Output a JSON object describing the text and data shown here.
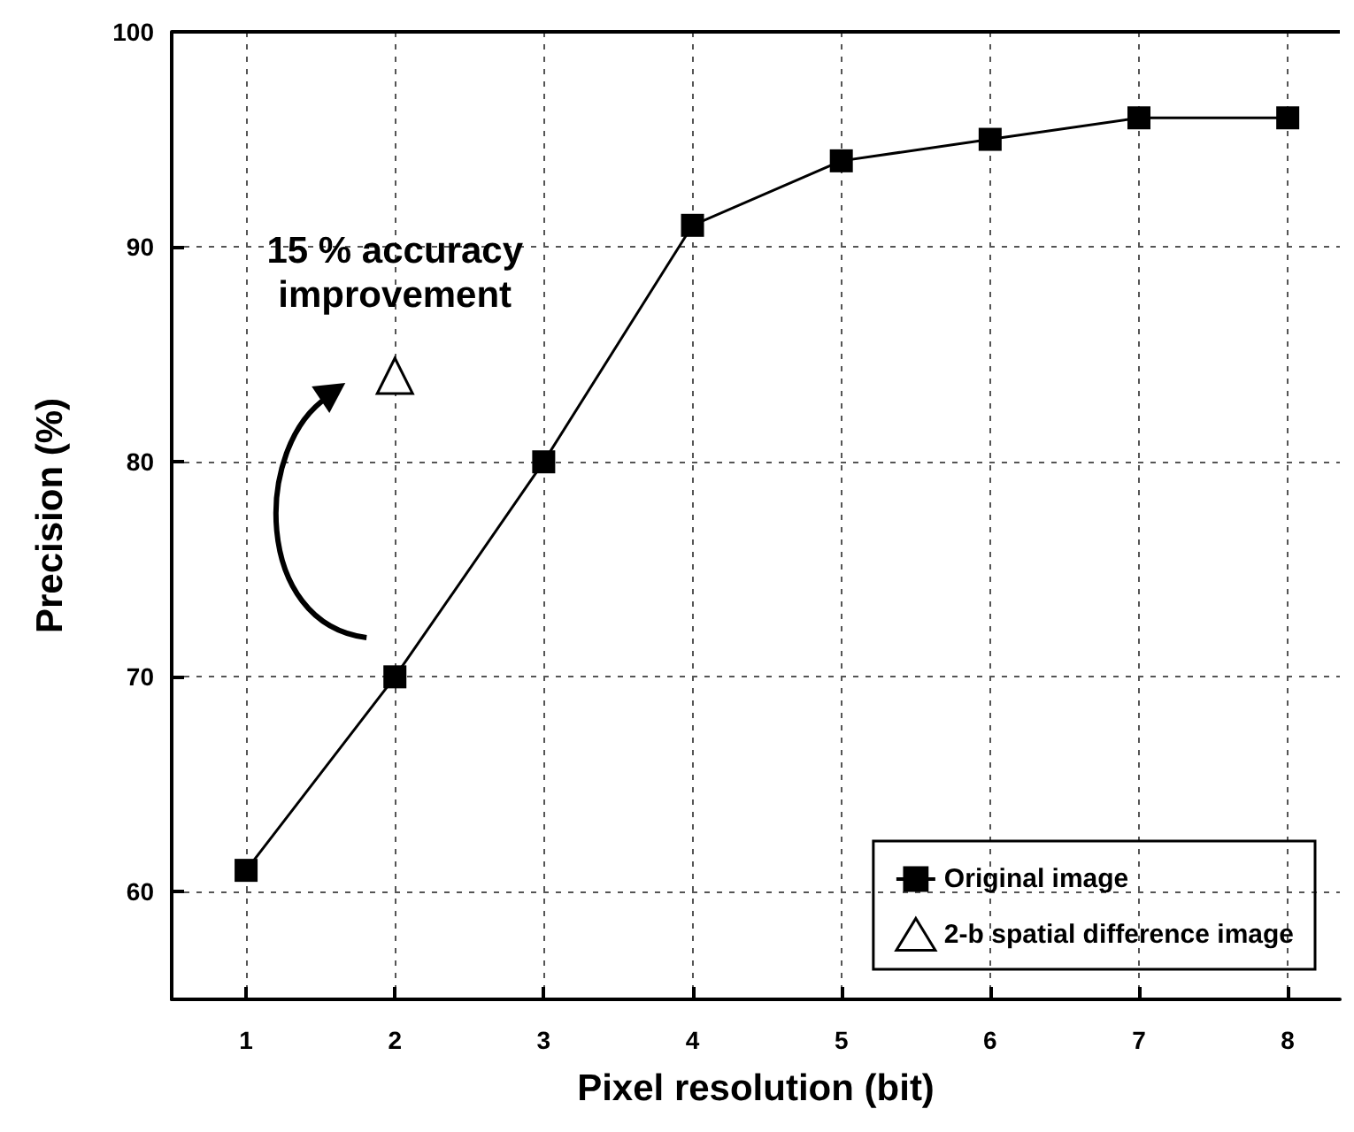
{
  "chart_data": {
    "type": "line",
    "xlabel": "Pixel resolution (bit)",
    "ylabel": "Precision (%)",
    "x": [
      1,
      2,
      3,
      4,
      5,
      6,
      7,
      8
    ],
    "series": [
      {
        "name": "Original image",
        "color": "#000000",
        "values": [
          61,
          70,
          80,
          91,
          94,
          95,
          96,
          96
        ],
        "marker": "square"
      },
      {
        "name": "2-b spatial difference image",
        "type": "scatter",
        "color": "#000000",
        "x": [
          2
        ],
        "values": [
          84
        ],
        "marker": "triangle"
      }
    ],
    "xlim": [
      0.5,
      8.35
    ],
    "xticks": [
      1,
      2,
      3,
      4,
      5,
      6,
      7,
      8
    ],
    "ylim": [
      55,
      100
    ],
    "yticks": [
      60,
      70,
      80,
      90,
      100
    ],
    "grid": true,
    "line_style": "solid",
    "legend": "bottom right",
    "annotations": [
      "15 % accuracy\nimprovement"
    ]
  }
}
